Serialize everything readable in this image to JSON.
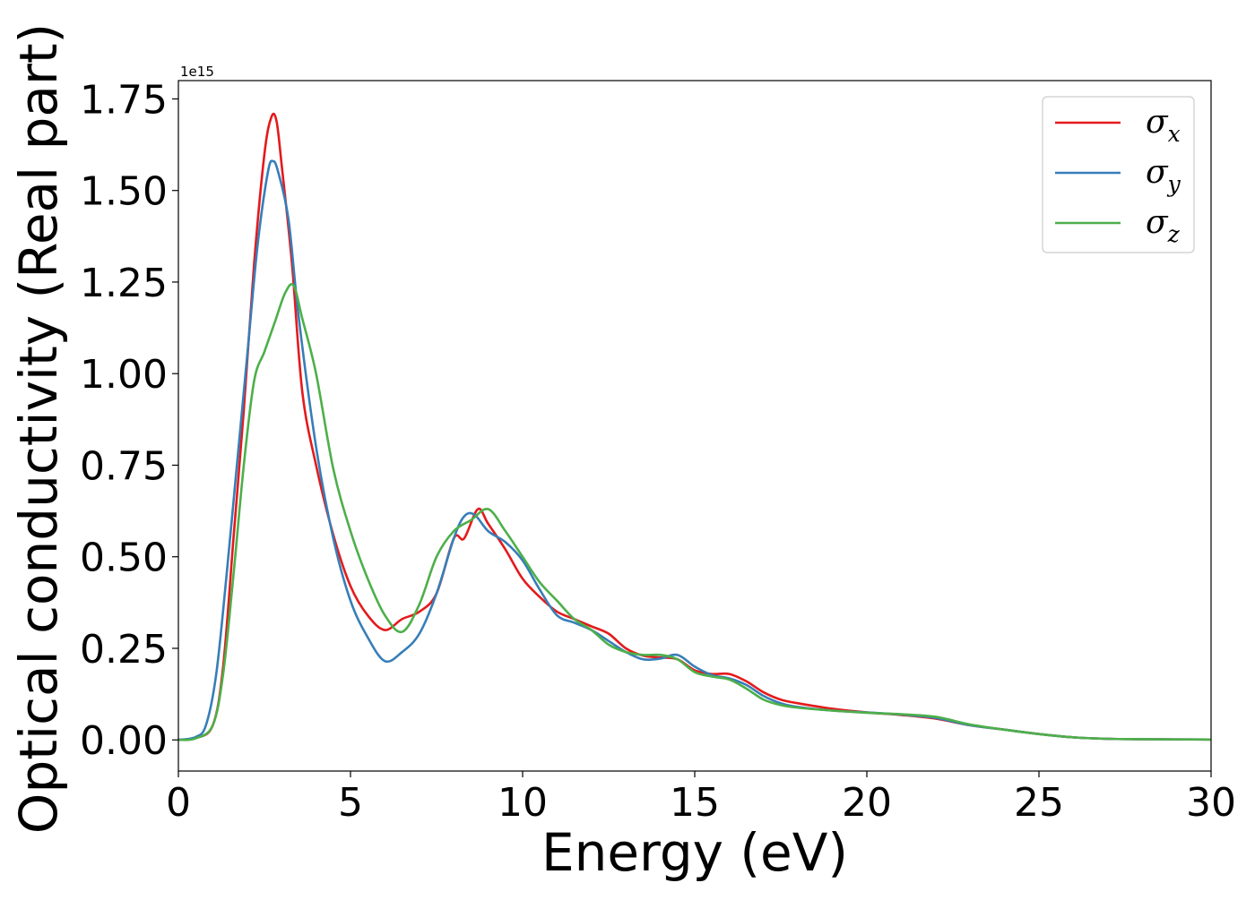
{
  "chart_data": {
    "type": "line",
    "xlabel": "Energy (eV)",
    "ylabel": "Optical conductivity (Real part)",
    "y_offset_label": "1e15",
    "xlim": [
      0,
      30
    ],
    "ylim": [
      -0.085,
      1.8
    ],
    "x_ticks": [
      0,
      5,
      10,
      15,
      20,
      25,
      30
    ],
    "x_tick_labels": [
      "0",
      "5",
      "10",
      "15",
      "20",
      "25",
      "30"
    ],
    "y_ticks": [
      0.0,
      0.25,
      0.5,
      0.75,
      1.0,
      1.25,
      1.5,
      1.75
    ],
    "y_tick_labels": [
      "0.00",
      "0.25",
      "0.50",
      "0.75",
      "1.00",
      "1.25",
      "1.50",
      "1.75"
    ],
    "grid": false,
    "legend_position": "top-right",
    "series": [
      {
        "name": "σx",
        "symbol": "σ",
        "subscript": "x",
        "color": "#e41a1c",
        "points": [
          [
            0,
            0
          ],
          [
            0.5,
            0.005
          ],
          [
            1,
            0.04
          ],
          [
            1.3,
            0.2
          ],
          [
            1.6,
            0.55
          ],
          [
            1.9,
            0.9
          ],
          [
            2.2,
            1.3
          ],
          [
            2.5,
            1.6
          ],
          [
            2.7,
            1.7
          ],
          [
            2.85,
            1.69
          ],
          [
            3,
            1.57
          ],
          [
            3.3,
            1.3
          ],
          [
            3.6,
            0.95
          ],
          [
            4,
            0.75
          ],
          [
            4.5,
            0.56
          ],
          [
            5,
            0.42
          ],
          [
            5.5,
            0.34
          ],
          [
            6,
            0.3
          ],
          [
            6.5,
            0.33
          ],
          [
            7,
            0.35
          ],
          [
            7.5,
            0.4
          ],
          [
            8,
            0.55
          ],
          [
            8.3,
            0.55
          ],
          [
            8.7,
            0.63
          ],
          [
            9,
            0.59
          ],
          [
            9.5,
            0.52
          ],
          [
            10,
            0.44
          ],
          [
            10.5,
            0.39
          ],
          [
            11,
            0.35
          ],
          [
            11.5,
            0.33
          ],
          [
            12,
            0.31
          ],
          [
            12.5,
            0.29
          ],
          [
            13,
            0.25
          ],
          [
            13.5,
            0.23
          ],
          [
            14,
            0.225
          ],
          [
            14.5,
            0.22
          ],
          [
            15,
            0.19
          ],
          [
            15.5,
            0.18
          ],
          [
            16,
            0.18
          ],
          [
            16.5,
            0.16
          ],
          [
            17,
            0.13
          ],
          [
            17.5,
            0.11
          ],
          [
            18,
            0.1
          ],
          [
            19,
            0.085
          ],
          [
            20,
            0.075
          ],
          [
            21,
            0.068
          ],
          [
            22,
            0.058
          ],
          [
            23,
            0.04
          ],
          [
            24,
            0.028
          ],
          [
            25,
            0.016
          ],
          [
            26,
            0.007
          ],
          [
            27,
            0.003
          ],
          [
            28,
            0.002
          ],
          [
            30,
            0.001
          ]
        ]
      },
      {
        "name": "σy",
        "symbol": "σ",
        "subscript": "y",
        "color": "#377eb8",
        "points": [
          [
            0,
            0
          ],
          [
            0.5,
            0.008
          ],
          [
            0.8,
            0.04
          ],
          [
            1.1,
            0.18
          ],
          [
            1.4,
            0.45
          ],
          [
            1.7,
            0.75
          ],
          [
            2,
            1.05
          ],
          [
            2.3,
            1.35
          ],
          [
            2.6,
            1.55
          ],
          [
            2.75,
            1.58
          ],
          [
            2.9,
            1.55
          ],
          [
            3.2,
            1.42
          ],
          [
            3.5,
            1.15
          ],
          [
            4,
            0.8
          ],
          [
            4.5,
            0.55
          ],
          [
            5,
            0.38
          ],
          [
            5.5,
            0.28
          ],
          [
            6,
            0.215
          ],
          [
            6.5,
            0.24
          ],
          [
            7,
            0.29
          ],
          [
            7.5,
            0.4
          ],
          [
            8,
            0.55
          ],
          [
            8.3,
            0.61
          ],
          [
            8.6,
            0.615
          ],
          [
            9,
            0.57
          ],
          [
            9.5,
            0.54
          ],
          [
            10,
            0.49
          ],
          [
            10.5,
            0.41
          ],
          [
            11,
            0.34
          ],
          [
            11.5,
            0.32
          ],
          [
            12,
            0.3
          ],
          [
            12.5,
            0.27
          ],
          [
            13,
            0.24
          ],
          [
            13.5,
            0.22
          ],
          [
            14,
            0.222
          ],
          [
            14.5,
            0.232
          ],
          [
            15,
            0.2
          ],
          [
            15.5,
            0.177
          ],
          [
            16,
            0.168
          ],
          [
            16.5,
            0.15
          ],
          [
            17,
            0.12
          ],
          [
            17.5,
            0.1
          ],
          [
            18,
            0.09
          ],
          [
            19,
            0.08
          ],
          [
            20,
            0.075
          ],
          [
            21,
            0.069
          ],
          [
            22,
            0.06
          ],
          [
            23,
            0.04
          ],
          [
            24,
            0.028
          ],
          [
            25,
            0.016
          ],
          [
            26,
            0.007
          ],
          [
            27,
            0.003
          ],
          [
            28,
            0.002
          ],
          [
            30,
            0.001
          ]
        ]
      },
      {
        "name": "σz",
        "symbol": "σ",
        "subscript": "z",
        "color": "#4daf4a",
        "points": [
          [
            0,
            0
          ],
          [
            0.5,
            0.004
          ],
          [
            1,
            0.04
          ],
          [
            1.3,
            0.18
          ],
          [
            1.6,
            0.45
          ],
          [
            1.9,
            0.75
          ],
          [
            2.2,
            0.98
          ],
          [
            2.5,
            1.06
          ],
          [
            2.8,
            1.14
          ],
          [
            3.1,
            1.22
          ],
          [
            3.35,
            1.24
          ],
          [
            3.6,
            1.15
          ],
          [
            4,
            1.0
          ],
          [
            4.5,
            0.74
          ],
          [
            5,
            0.57
          ],
          [
            5.5,
            0.44
          ],
          [
            6,
            0.34
          ],
          [
            6.5,
            0.295
          ],
          [
            7,
            0.37
          ],
          [
            7.5,
            0.5
          ],
          [
            8,
            0.57
          ],
          [
            8.5,
            0.6
          ],
          [
            9,
            0.63
          ],
          [
            9.5,
            0.57
          ],
          [
            10,
            0.5
          ],
          [
            10.5,
            0.43
          ],
          [
            11,
            0.38
          ],
          [
            11.5,
            0.33
          ],
          [
            12,
            0.3
          ],
          [
            12.5,
            0.26
          ],
          [
            13,
            0.24
          ],
          [
            13.5,
            0.232
          ],
          [
            14,
            0.232
          ],
          [
            14.5,
            0.22
          ],
          [
            15,
            0.185
          ],
          [
            15.5,
            0.173
          ],
          [
            16,
            0.165
          ],
          [
            16.5,
            0.14
          ],
          [
            17,
            0.11
          ],
          [
            17.5,
            0.095
          ],
          [
            18,
            0.088
          ],
          [
            19,
            0.08
          ],
          [
            20,
            0.074
          ],
          [
            21,
            0.07
          ],
          [
            22,
            0.063
          ],
          [
            23,
            0.042
          ],
          [
            24,
            0.028
          ],
          [
            25,
            0.016
          ],
          [
            26,
            0.007
          ],
          [
            27,
            0.003
          ],
          [
            28,
            0.002
          ],
          [
            30,
            0.001
          ]
        ]
      }
    ]
  }
}
